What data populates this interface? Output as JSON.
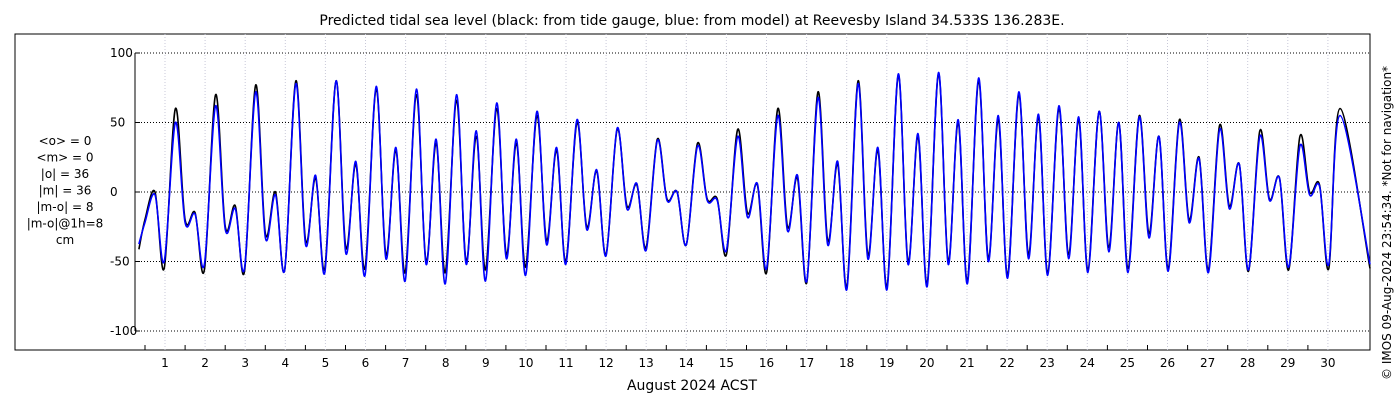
{
  "chart_data": {
    "type": "line",
    "title": "Predicted tidal sea level (black: from tide gauge, blue: from model) at Reevesby Island 34.533S 136.283E.",
    "xlabel": "August 2024 ACST",
    "ylabel": "cm",
    "xlim": [
      0.3,
      31.2
    ],
    "ylim": [
      -115,
      115
    ],
    "grid": true,
    "x_ticks": [
      "1",
      "2",
      "3",
      "4",
      "5",
      "6",
      "7",
      "8",
      "9",
      "10",
      "11",
      "12",
      "13",
      "14",
      "15",
      "16",
      "17",
      "18",
      "19",
      "20",
      "21",
      "22",
      "23",
      "24",
      "25",
      "26",
      "27",
      "28",
      "29",
      "30"
    ],
    "y_ticks": [
      100,
      50,
      0,
      -50,
      -100
    ],
    "y_tick_labels": [
      "100",
      "50",
      "0",
      "-50",
      "-100"
    ],
    "stats": [
      "<o> = 0",
      "<m> = 0",
      "|o| = 36",
      "|m| = 36",
      "|m-o| = 8",
      "|m-o|@1h=8",
      "cm"
    ],
    "credit": "© IMOS 09-Aug-2024 23:54:34. *Not for navigation*",
    "series": [
      {
        "name": "from tide gauge",
        "color": "#000000",
        "days": [
          1,
          2,
          3,
          4,
          5,
          6,
          7,
          8,
          9,
          10,
          11,
          12,
          13,
          14,
          15,
          16,
          17,
          18,
          19,
          20,
          21,
          22,
          23,
          24,
          25,
          26,
          27,
          28,
          29,
          30
        ],
        "high1": [
          60,
          70,
          77,
          80,
          80,
          74,
          70,
          66,
          60,
          55,
          50,
          45,
          38,
          35,
          45,
          60,
          72,
          80,
          84,
          85,
          80,
          70,
          60,
          58,
          55,
          52,
          48,
          44,
          40,
          60
        ],
        "low1": [
          -55,
          -56,
          -57,
          -56,
          -55,
          -55,
          -58,
          -58,
          -56,
          -54,
          -50,
          -45,
          -40,
          -38,
          -45,
          -58,
          -65,
          -68,
          -68,
          -66,
          -64,
          -60,
          -58,
          -56,
          -55,
          -55,
          -56,
          -57,
          -56,
          -55
        ],
        "high2": [
          0,
          -15,
          -10,
          0,
          10,
          20,
          30,
          35,
          40,
          35,
          30,
          15,
          5,
          0,
          -5,
          5,
          10,
          20,
          30,
          40,
          50,
          52,
          54,
          52,
          50,
          40,
          25,
          20,
          10,
          5
        ],
        "low2": [
          -20,
          -20,
          -25,
          -30,
          -35,
          -40,
          -45,
          -50,
          -50,
          -45,
          -35,
          -25,
          -10,
          -5,
          -5,
          -15,
          -25,
          -35,
          -45,
          -50,
          -50,
          -48,
          -45,
          -45,
          -40,
          -30,
          -20,
          -10,
          -5,
          0
        ]
      },
      {
        "name": "from model",
        "color": "#0000ff",
        "days": [
          1,
          2,
          3,
          4,
          5,
          6,
          7,
          8,
          9,
          10,
          11,
          12,
          13,
          14,
          15,
          16,
          17,
          18,
          19,
          20,
          21,
          22,
          23,
          24,
          25,
          26,
          27,
          28,
          29,
          30
        ],
        "high1": [
          50,
          62,
          72,
          78,
          80,
          76,
          74,
          70,
          64,
          58,
          52,
          46,
          37,
          33,
          40,
          55,
          68,
          78,
          85,
          86,
          82,
          72,
          62,
          58,
          54,
          50,
          45,
          40,
          33,
          55
        ],
        "low1": [
          -50,
          -52,
          -55,
          -56,
          -58,
          -60,
          -64,
          -66,
          -64,
          -60,
          -52,
          -46,
          -42,
          -38,
          -42,
          -55,
          -64,
          -70,
          -70,
          -68,
          -66,
          -62,
          -60,
          -58,
          -58,
          -57,
          -58,
          -56,
          -54,
          -52
        ],
        "high2": [
          -2,
          -16,
          -12,
          -2,
          12,
          22,
          32,
          38,
          44,
          38,
          32,
          16,
          6,
          0,
          -6,
          6,
          12,
          22,
          32,
          42,
          52,
          55,
          56,
          54,
          50,
          40,
          24,
          20,
          10,
          4
        ],
        "low2": [
          -22,
          -22,
          -27,
          -33,
          -38,
          -44,
          -48,
          -52,
          -52,
          -48,
          -38,
          -27,
          -12,
          -6,
          -6,
          -18,
          -28,
          -38,
          -48,
          -52,
          -52,
          -50,
          -48,
          -48,
          -43,
          -33,
          -22,
          -12,
          -6,
          -2
        ]
      }
    ]
  }
}
